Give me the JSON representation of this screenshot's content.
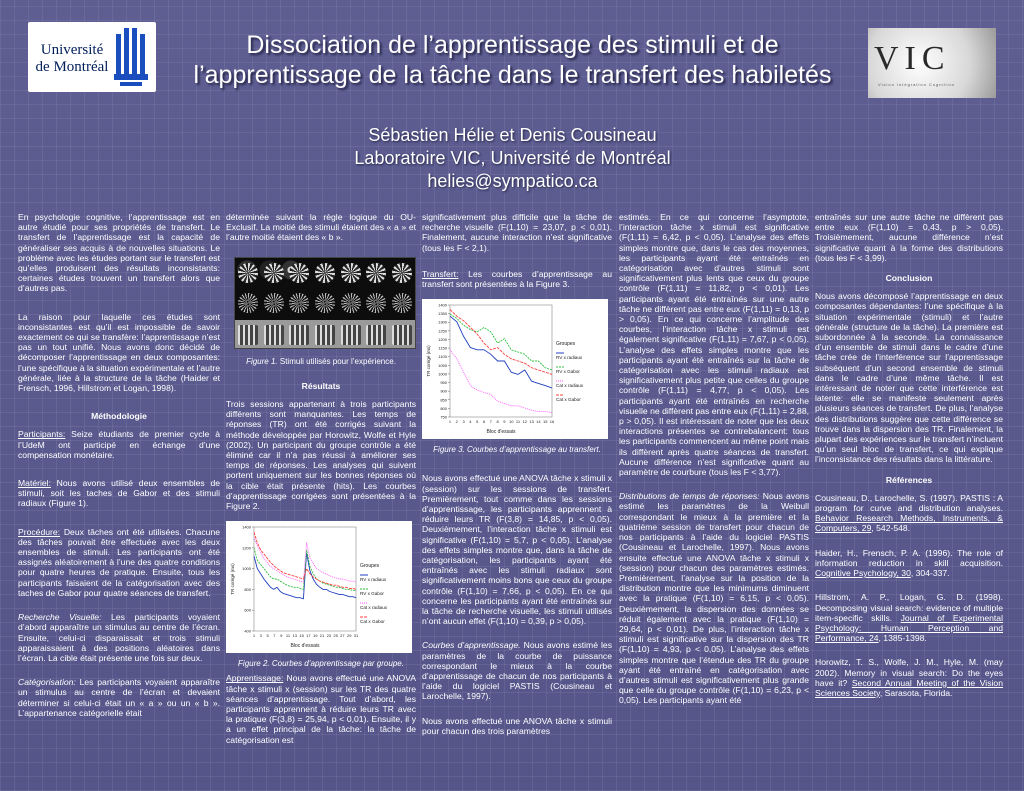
{
  "header": {
    "title_line1": "Dissociation de l’apprentissage des stimuli et de",
    "title_line2": "l’apprentissage de la tâche dans le transfert des habiletés",
    "authors": "Sébastien Hélie et Denis Cousineau",
    "lab": "Laboratoire VIC, Université de Montréal",
    "email": "helies@sympatico.ca"
  },
  "logos": {
    "udem_line1": "Université",
    "udem_line2": "de Montréal",
    "vic_mark": "VIC",
    "vic_sub": "Vision Intégration Cognition"
  },
  "col1": {
    "p1": "En psychologie cognitive, l’apprentissage est en autre étudié pour ses propriétés de transfert. Le transfert de l’apprentissage est la capacité de généraliser ses acquis à de nouvelles situations. Le problème avec les études portant sur le transfert est qu’elles produisent des résultats inconsistants: certaines études trouvent un transfert alors que d’autres pas.",
    "p2": "La raison pour laquelle ces études sont inconsistantes est qu’il est impossible de savoir exactement ce qui se transfère: l’apprentissage n’est pas un tout unifié. Nous avons donc décidé de décomposer l’apprentissage en deux composantes: l’une spécifique à la situation expérimentale et l’autre générale, liée à la structure de la tâche (Haider et Frensch, 1996, Hillstrom et Logan, 1998).",
    "methodo": "Méthodologie",
    "part_label": "Participants:",
    "part_text": " Seize étudiants de premier cycle à l’UdeM ont participé en échange d’une compensation monétaire.",
    "mat_label": "Matériel:",
    "mat_text": " Nous avons utilisé deux ensembles de stimuli, soit les taches de Gabor et des stimuli radiaux (Figure 1).",
    "proc_label": "Procédure:",
    "proc_text": "  Deux tâches ont été utilisées. Chacune des tâches pouvait être effectuée avec les deux ensembles de stimuli. Les participants ont été assignés aléatoirement à l’une des quatre conditions pour quatre heures de pratique. Ensuite, tous les participants faisaient de la catégorisation avec des taches de Gabor pour quatre séances de transfert.",
    "rv_label": "Recherche Visuelle:",
    "rv_text": " Les participants voyaient d’abord apparaître un stimulus au centre de l’écran. Ensuite, celui-ci disparaissait et trois stimuli apparaissaient à des positions aléatoires dans l’écran. La cible était présente une fois sur deux.",
    "cat_label": "Catégorisation:",
    "cat_text": "  Les participants voyaient apparaître un stimulus au centre de l’écran et devaient déterminer si celui-ci était un « a » ou un « b ». L’appartenance catégorielle était"
  },
  "col2": {
    "p1": "déterminée suivant la règle logique du OU-Exclusif. La moitié des stimuli étaient des « a » et l’autre moitié étaient des « b ».",
    "fig1_num": "Figure 1.",
    "fig1_text": " Stimuli utilisés pour l’expérience.",
    "resultats": "Résultats",
    "p2": "Trois sessions appartenant à trois participants différents sont manquantes. Les temps de réponses (TR) ont été corrigés suivant la méthode développée par Horowitz, Wolfe et Hyle (2002). Un participant du groupe contrôle a été éliminé car il n’a pas réussi à améliorer ses temps de réponses. Les analyses qui suivent portent uniquement sur les bonnes réponses où la cible était présente (hits). Les courbes d’apprentissage corrigées sont présentées à la Figure 2.",
    "fig2_num": "Figure 2.",
    "fig2_text": " Courbes d’apprentissage par groupe.",
    "app_label": "Apprentissage:",
    "app_text": " Nous avons effectué une ANOVA tâche x stimuli x (session) sur les TR des quatre séances d’apprentissage. Tout d’abord, les participants apprennent à réduire leurs TR avec la pratique (F(3,8) = 25,94, p < 0,01). Ensuite, il y a un effet principal de la tâche: la tâche de catégorisation est"
  },
  "col3": {
    "p1": "significativement plus difficile que la tâche de recherche visuelle (F(1,10) = 23,07, p < 0,01). Finalement, aucune interaction n’est significative (tous les F < 2,1).",
    "tr_label": "Transfert:",
    "tr_text": " Les courbes d’apprentissage au transfert sont présentées à la Figure 3.",
    "fig3_num": "Figure 3.",
    "fig3_text": " Courbes d’apprentissage au transfert.",
    "p2": "Nous avons effectué une ANOVA tâche x stimuli x (session) sur les sessions de transfert. Premièrement, tout comme dans les sessions d’apprentissage, les participants apprennent à réduire leurs TR (F(3,8) = 14,85, p < 0,05). Deuxièmement, l’interaction tâche x stimuli est significative (F(1,10) = 5,7, p < 0,05). L’analyse des effets simples montre que, dans la tâche de catégorisation, les participants ayant été entraînés avec les stimuli radiaux sont significativement moins bons que ceux du groupe contrôle (F(1,10) = 7,66, p < 0,05). En ce qui concerne les participants ayant été entraînés sur la tâche de recherche visuelle, les stimuli utilisés n’ont aucun effet (F(1,10) = 0,39, p > 0,05).",
    "ca_label": "Courbes d’apprentissage.",
    "ca_text": " Nous avons estimé les paramètres de la courbe de puissance correspondant le mieux à la courbe d’apprentissage de chacun de nos participants à l’aide du logiciel PASTIS (Cousineau et Larochelle, 1997).",
    "p3": "Nous avons effectué une ANOVA tâche x stimuli pour chacun des trois paramètres"
  },
  "col4": {
    "p1": "estimés. En ce qui concerne l’asymptote, l’interaction tâche x stimuli est significative (F(1,11) = 6,42, p < 0,05). L’analyse des effets simples montre que, dans le cas des moyennes, les participants ayant été entraînés en catégorisation avec d’autres stimuli sont significativement plus lents que ceux du groupe contrôle (F(1,11) = 11,82, p < 0,01). Les participants ayant été entraînés sur une autre tâche ne diffèrent pas entre eux (F(1,11) = 0,13, p > 0,05). En ce qui concerne l’amplitude des courbes, l’interaction tâche x stimuli est également significative (F(1,11) = 7,67, p < 0,05). L’analyse des effets simples montre que les participants ayant été entraînés sur la tâche de catégorisation avec les stimuli radiaux est significativement plus petite que celles du groupe contrôle (F(1,11) = 4,77, p < 0,05). Les participants ayant été entraînés en recherche visuelle ne diffèrent pas entre eux (F(1,11) = 2,88, p > 0,05). Il est intéressant de noter que les deux interactions présentes se contrebalancent: tous les participants commencent au même point mais ils diffèrent après quatre séances de transfert. Aucune différence n’est significative quant au paramètre de courbure (tous les F < 3,77).",
    "dist_label": "Distributions de temps de réponses:",
    "dist_text": " Nous avons estimé les paramètres de la Weibull correspondant le mieux à la première et la quatrième session de transfert pour chacun de nos participants à l’aide du logiciel PASTIS (Cousineau et Larochelle, 1997). Nous avons ensuite effectué une ANOVA tâche x stimuli x (session) pour chacun des paramètres estimés. Premièrement, l’analyse sur la position de la distribution montre que les minimums diminuent avec la pratique (F(1,10) = 6,15, p < 0,05). Deuxièmement, la dispersion des données se réduit également avec la pratique (F(1,10) = 29,64, p < 0,01). De plus, l’interaction tâche x stimuli est significative sur la dispersion des TR (F(1,10) = 4,93, p < 0,05). L’analyse des effets simples montre que l’étendue des TR du groupe ayant été entraîné en catégorisation avec d’autres stimuli est significativement plus grande que celle du groupe contrôle (F(1,10) = 6,23, p < 0,05). Les participants ayant été"
  },
  "col5": {
    "p1": "entraînés sur une autre tâche ne diffèrent pas entre eux (F(1,10) = 0,43, p > 0,05). Troisièmement, aucune différence n’est significative quant à la forme des distributions (tous les F < 3,99).",
    "conclusion": "Conclusion",
    "p2": "Nous avons décomposé l’apprentissage en deux composantes dépendantes: l’une spécifique à la situation expérimentale (stimuli) et l’autre générale (structure de la tâche). La première est subordonnée à la seconde. La connaissance d’un ensemble de stimuli dans le cadre d’une tâche crée de l’interférence sur l’apprentissage subséquent d’un second ensemble de stimuli dans le cadre d’une même tâche. Il est intéressant de noter que cette interférence est latente: elle se manifeste seulement après plusieurs séances de transfert. De plus, l’analyse des distributions suggère que cette différence se trouve dans la dispersion des TR. Finalement, la plupart des expériences sur le transfert n’incluent qu’un seul bloc de transfert, ce qui explique l’inconsistance des résultats dans la littérature.",
    "references": "Références",
    "ref1_a": "Cousineau, D., Larochelle, S. (1997). PASTIS : A program for curve and distribution analyses. ",
    "ref1_b": "Behavior Research Methods, Instruments, & Computers, 29",
    "ref1_c": ", 542-548.",
    "ref2_a": "Haider, H., Frensch, P. A. (1996). The role of information reduction in skill acquisition. ",
    "ref2_b": "Cognitive Psychology, 30",
    "ref2_c": ", 304-337.",
    "ref3_a": "Hillstrom, A. P., Logan, G. D. (1998). Decomposing visual search: evidence of multiple item-specific skills. ",
    "ref3_b": "Journal of Experimental Psychology: Human Perception and Performance, 24",
    "ref3_c": ", 1385-1398.",
    "ref4_a": "Horowitz, T. S., Wolfe, J. M., Hyle, M. (may 2002). Memory in visual search: Do the eyes have it? ",
    "ref4_b": "Second Annual Meeting of the Vision Sciences Society",
    "ref4_c": ", Sarasota, Florida."
  },
  "fig2": {
    "ylabel": "TR corrigé (ms)",
    "xlabel": "Bloc d'essais",
    "legend_title": "Groupes",
    "series": [
      "RV x radiaux",
      "RV x Gabor",
      "Cat x radiaux",
      "Cat x Gabor"
    ],
    "yticks": [
      "400",
      "600",
      "800",
      "1000",
      "1200",
      "1400"
    ],
    "xticks": [
      "1",
      "3",
      "5",
      "7",
      "9",
      "11",
      "13",
      "15",
      "17",
      "19",
      "21",
      "23",
      "25",
      "27",
      "29",
      "31"
    ]
  },
  "fig3": {
    "ylabel": "TR corrigé (ms)",
    "xlabel": "Bloc d'essais",
    "legend_title": "Groupes",
    "series": [
      "RV x radiaux",
      "RV x Gabor",
      "Cat x radiaux",
      "Cat x Gabor"
    ],
    "yticks": [
      "750",
      "800",
      "850",
      "900",
      "950",
      "1000",
      "1050",
      "1100",
      "1150",
      "1200",
      "1250",
      "1300",
      "1350",
      "1400"
    ],
    "xticks": [
      "1",
      "2",
      "3",
      "4",
      "5",
      "6",
      "7",
      "8",
      "9",
      "10",
      "11",
      "12",
      "13",
      "14",
      "15",
      "16"
    ]
  },
  "colors": {
    "background": "#5a5a8c",
    "series": [
      "#1f3fbf",
      "#2fbf3f",
      "#ff55ff",
      "#ff3f3f"
    ]
  }
}
